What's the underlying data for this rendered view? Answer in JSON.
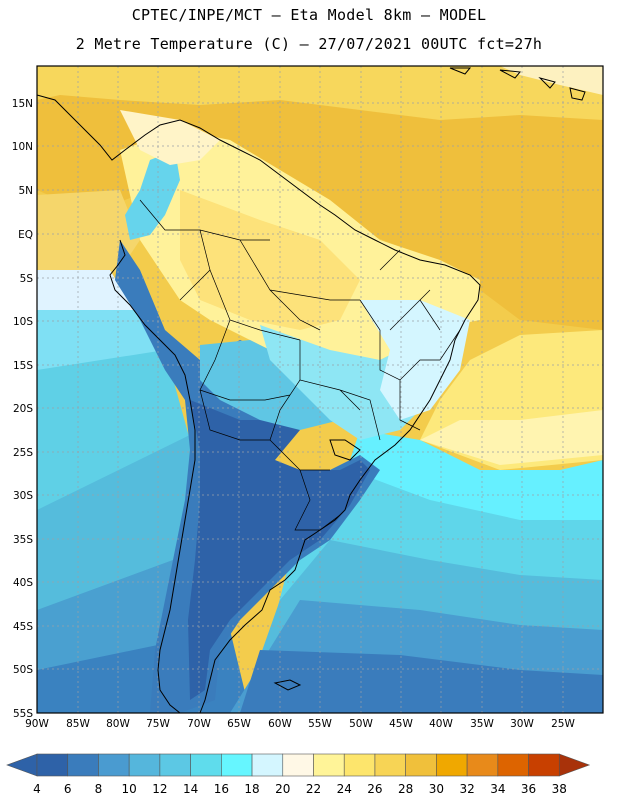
{
  "header": {
    "line1": "CPTEC/INPE/MCT –  Eta Model 8km – MODEL",
    "line2": "2 Metre Temperature (C) – 27/07/2021 00UTC fct=27h"
  },
  "map": {
    "lat_labels": [
      "15N",
      "10N",
      "5N",
      "EQ",
      "5S",
      "10S",
      "15S",
      "20S",
      "25S",
      "30S",
      "35S",
      "40S",
      "45S",
      "50S",
      "55S"
    ],
    "lon_labels": [
      "90W",
      "85W",
      "80W",
      "75W",
      "70W",
      "65W",
      "60W",
      "55W",
      "50W",
      "45W",
      "40W",
      "35W",
      "30W",
      "25W"
    ],
    "lat_range": [
      -55,
      19
    ],
    "lon_range": [
      -90,
      -20
    ]
  },
  "colorbar": {
    "levels": [
      "4",
      "6",
      "8",
      "10",
      "12",
      "14",
      "16",
      "18",
      "20",
      "22",
      "24",
      "26",
      "28",
      "30",
      "32",
      "34",
      "36",
      "38"
    ],
    "colors": [
      "#2e62a8",
      "#3a7cbc",
      "#4a9bd0",
      "#55b6dc",
      "#5cc8e4",
      "#5fdcec",
      "#66f6ff",
      "#d4f6ff",
      "#fff8e6",
      "#fff498",
      "#fde56c",
      "#f7d455",
      "#f0c03b",
      "#f0a800",
      "#e88a1a",
      "#dd6400",
      "#c84000",
      "#a8320a"
    ]
  }
}
